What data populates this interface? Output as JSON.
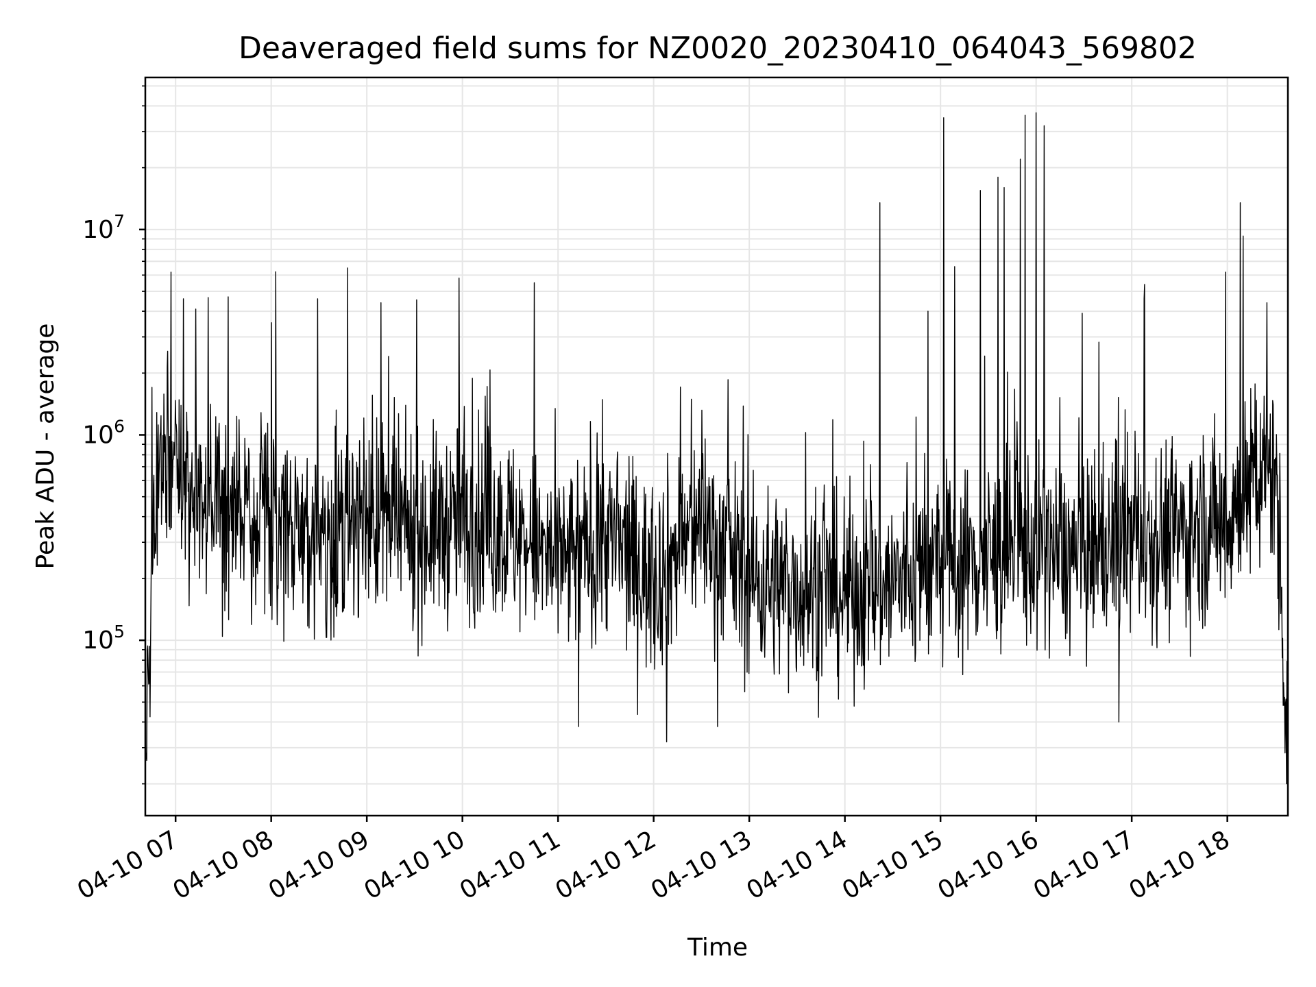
{
  "chart_data": {
    "type": "line",
    "title": "Deaveraged field sums for NZ0020_20230410_064043_569802",
    "xlabel": "Time",
    "ylabel": "Peak ADU - average",
    "yscale": "log",
    "ylim": [
      14000,
      55000000
    ],
    "xlim": [
      "2023-04-10 06:41",
      "2023-04-10 18:38"
    ],
    "grid": true,
    "x_ticks": [
      {
        "value": "2023-04-10 07:00",
        "label": "04-10 07"
      },
      {
        "value": "2023-04-10 08:00",
        "label": "04-10 08"
      },
      {
        "value": "2023-04-10 09:00",
        "label": "04-10 09"
      },
      {
        "value": "2023-04-10 10:00",
        "label": "04-10 10"
      },
      {
        "value": "2023-04-10 11:00",
        "label": "04-10 11"
      },
      {
        "value": "2023-04-10 12:00",
        "label": "04-10 12"
      },
      {
        "value": "2023-04-10 13:00",
        "label": "04-10 13"
      },
      {
        "value": "2023-04-10 14:00",
        "label": "04-10 14"
      },
      {
        "value": "2023-04-10 15:00",
        "label": "04-10 15"
      },
      {
        "value": "2023-04-10 16:00",
        "label": "04-10 16"
      },
      {
        "value": "2023-04-10 17:00",
        "label": "04-10 17"
      },
      {
        "value": "2023-04-10 18:00",
        "label": "04-10 18"
      }
    ],
    "y_ticks": [
      {
        "value": 100000,
        "base": "10",
        "exp": "5"
      },
      {
        "value": 1000000,
        "base": "10",
        "exp": "6"
      },
      {
        "value": 10000000,
        "base": "10",
        "exp": "7"
      }
    ],
    "series": [
      {
        "color": "#000000",
        "baseline": [
          [
            "2023-04-10 06:41",
            30000
          ],
          [
            "2023-04-10 06:45",
            150000
          ],
          [
            "2023-04-10 06:48",
            700000
          ],
          [
            "2023-04-10 07:00",
            800000
          ],
          [
            "2023-04-10 07:15",
            550000
          ],
          [
            "2023-04-10 07:30",
            450000
          ],
          [
            "2023-04-10 08:00",
            420000
          ],
          [
            "2023-04-10 08:30",
            300000
          ],
          [
            "2023-04-10 09:00",
            400000
          ],
          [
            "2023-04-10 09:30",
            330000
          ],
          [
            "2023-04-10 10:00",
            380000
          ],
          [
            "2023-04-10 10:30",
            340000
          ],
          [
            "2023-04-10 11:00",
            230000
          ],
          [
            "2023-04-10 11:30",
            320000
          ],
          [
            "2023-04-10 12:00",
            200000
          ],
          [
            "2023-04-10 12:30",
            380000
          ],
          [
            "2023-04-10 13:00",
            200000
          ],
          [
            "2023-04-10 13:30",
            180000
          ],
          [
            "2023-04-10 14:00",
            170000
          ],
          [
            "2023-04-10 14:30",
            190000
          ],
          [
            "2023-04-10 15:00",
            230000
          ],
          [
            "2023-04-10 15:30",
            250000
          ],
          [
            "2023-04-10 16:00",
            280000
          ],
          [
            "2023-04-10 16:30",
            250000
          ],
          [
            "2023-04-10 17:00",
            320000
          ],
          [
            "2023-04-10 17:30",
            330000
          ],
          [
            "2023-04-10 18:00",
            400000
          ],
          [
            "2023-04-10 18:20",
            600000
          ],
          [
            "2023-04-10 18:30",
            700000
          ],
          [
            "2023-04-10 18:35",
            100000
          ],
          [
            "2023-04-10 18:38",
            40000
          ]
        ],
        "peaks": [
          [
            "2023-04-10 06:57",
            6200000
          ],
          [
            "2023-04-10 07:05",
            4600000
          ],
          [
            "2023-04-10 07:33",
            4700000
          ],
          [
            "2023-04-10 08:29",
            4600000
          ],
          [
            "2023-04-10 08:48",
            6500000
          ],
          [
            "2023-04-10 09:09",
            4400000
          ],
          [
            "2023-04-10 09:58",
            5800000
          ],
          [
            "2023-04-10 10:45",
            5500000
          ],
          [
            "2023-04-10 14:22",
            13500000
          ],
          [
            "2023-04-10 14:52",
            4000000
          ],
          [
            "2023-04-10 15:02",
            35000000
          ],
          [
            "2023-04-10 15:09",
            6600000
          ],
          [
            "2023-04-10 15:25",
            15500000
          ],
          [
            "2023-04-10 15:36",
            18000000
          ],
          [
            "2023-04-10 15:40",
            16000000
          ],
          [
            "2023-04-10 15:50",
            22000000
          ],
          [
            "2023-04-10 15:53",
            36000000
          ],
          [
            "2023-04-10 16:00",
            37000000
          ],
          [
            "2023-04-10 16:05",
            32000000
          ],
          [
            "2023-04-10 17:08",
            5400000
          ],
          [
            "2023-04-10 17:59",
            6200000
          ],
          [
            "2023-04-10 18:08",
            13500000
          ],
          [
            "2023-04-10 18:10",
            9300000
          ],
          [
            "2023-04-10 18:25",
            4400000
          ]
        ],
        "dips": [
          [
            "2023-04-10 06:42",
            26000
          ],
          [
            "2023-04-10 11:13",
            38000
          ],
          [
            "2023-04-10 12:08",
            32000
          ],
          [
            "2023-04-10 12:40",
            38000
          ],
          [
            "2023-04-10 16:52",
            40000
          ],
          [
            "2023-04-10 18:37",
            20000
          ]
        ]
      }
    ]
  }
}
